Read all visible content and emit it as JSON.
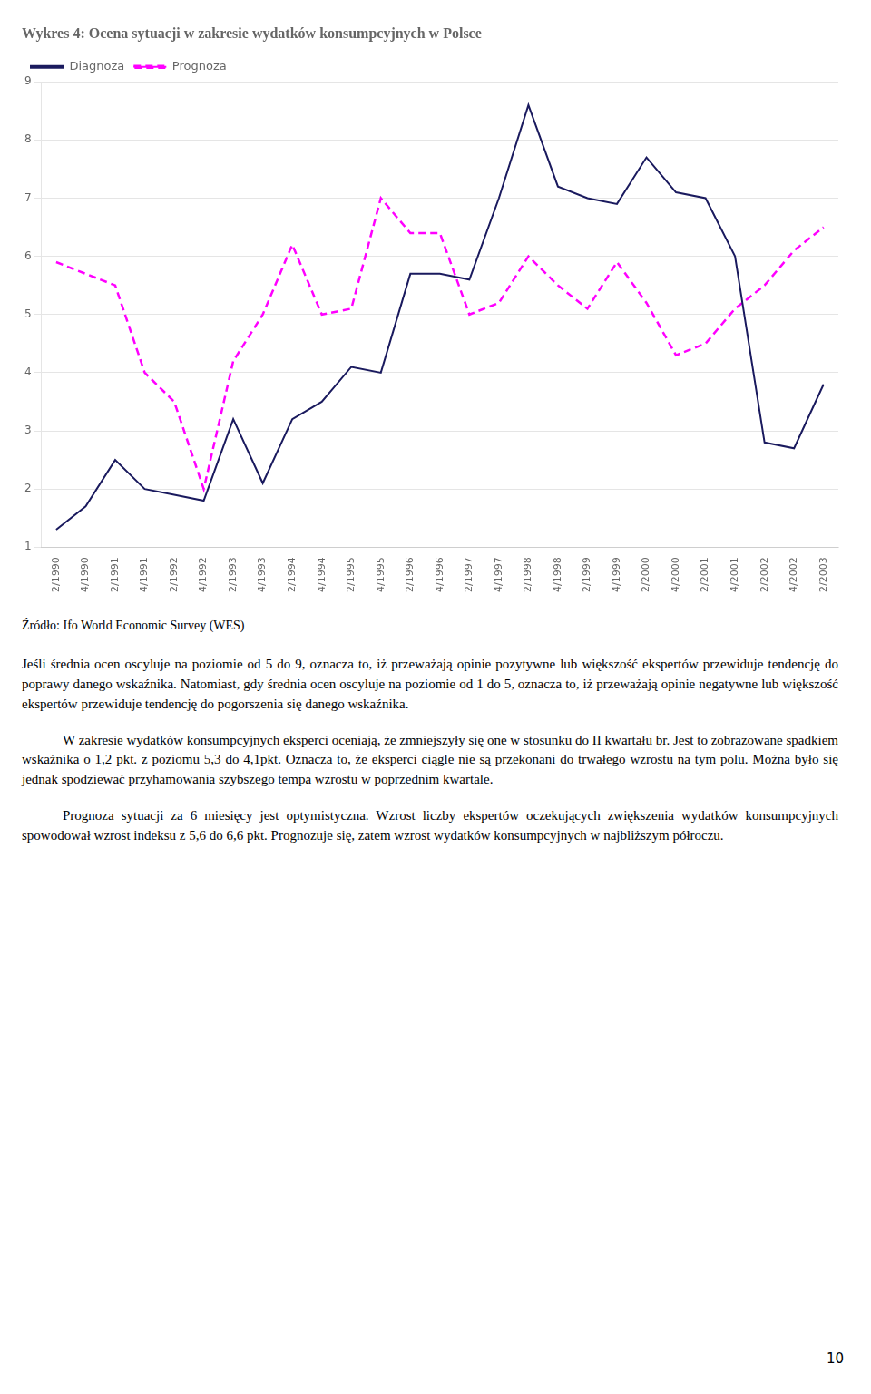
{
  "chart_data": {
    "type": "line",
    "title": "Wykres 4: Ocena sytuacji w zakresie wydatków konsumpcyjnych w Polsce",
    "categories": [
      "2/1990",
      "4/1990",
      "2/1991",
      "4/1991",
      "2/1992",
      "4/1992",
      "2/1993",
      "4/1993",
      "2/1994",
      "4/1994",
      "2/1995",
      "4/1995",
      "2/1996",
      "4/1996",
      "2/1997",
      "4/1997",
      "2/1998",
      "4/1998",
      "2/1999",
      "4/1999",
      "2/2000",
      "4/2000",
      "2/2001",
      "4/2001",
      "2/2002",
      "4/2002",
      "2/2003"
    ],
    "series": [
      {
        "name": "Diagnoza",
        "color": "#1a1a5e",
        "line_style": "solid",
        "marker": "none",
        "values": [
          1.3,
          1.7,
          2.5,
          2.0,
          1.9,
          1.8,
          3.2,
          2.1,
          3.2,
          3.5,
          4.1,
          4.0,
          5.7,
          5.7,
          5.6,
          7.0,
          8.6,
          7.2,
          7.0,
          6.9,
          7.7,
          7.1,
          7.0,
          6.0,
          2.8,
          2.7,
          3.8
        ]
      },
      {
        "name": "Prognoza",
        "color": "#ff00ff",
        "line_style": "dashed",
        "marker": "none",
        "values": [
          5.9,
          5.7,
          5.5,
          4.0,
          3.5,
          2.0,
          4.2,
          5.0,
          6.2,
          5.0,
          5.1,
          7.0,
          6.4,
          6.4,
          5.0,
          5.2,
          6.0,
          5.5,
          5.1,
          5.9,
          5.2,
          4.3,
          4.5,
          5.1,
          5.5,
          6.1,
          6.5
        ]
      }
    ],
    "ylim": [
      1,
      9
    ],
    "yticks": [
      1,
      2,
      3,
      4,
      5,
      6,
      7,
      8,
      9
    ],
    "grid": "y",
    "legend": "top left",
    "annotations": [
      "Źródło: Ifo World Economic Survey (WES)",
      "Jeśli średnia ocen oscyluje na poziomie od 5 do 9, oznacza to, iż przeważają opinie pozytywne lub większość ekspertów przewiduje tendencję do poprawy danego wskaźnika. Natomiast, gdy średnia ocen oscyluje na poziomie od 1 do 5, oznacza to, iż przeważają opinie negatywne lub większość ekspertów przewiduje tendencję do pogorszenia się danego wskaźnika.",
      "W zakresie wydatków konsumpcyjnych eksperci oceniają, że zmniejszyły się one w stosunku do II kwartału br. Jest to zobrazowane spadkiem wskaźnika o 1,2 pkt. z poziomu 5,3 do 4,1pkt. Oznacza to, że eksperci ciągle nie są przekonani do trwałego wzrostu na tym polu. Można było się jednak spodziewać przyhamowania szybszego tempa wzrostu w poprzednim kwartale.",
      "Prognoza sytuacji za 6 miesięcy jest optymistyczna. Wzrost liczby ekspertów oczekujących zwiększenia wydatków konsumpcyjnych spowodował wzrost indeksu z 5,6 do 6,6 pkt. Prognozuje się, zatem wzrost wydatków konsumpcyjnych w najbliższym półroczu.",
      "10"
    ]
  }
}
